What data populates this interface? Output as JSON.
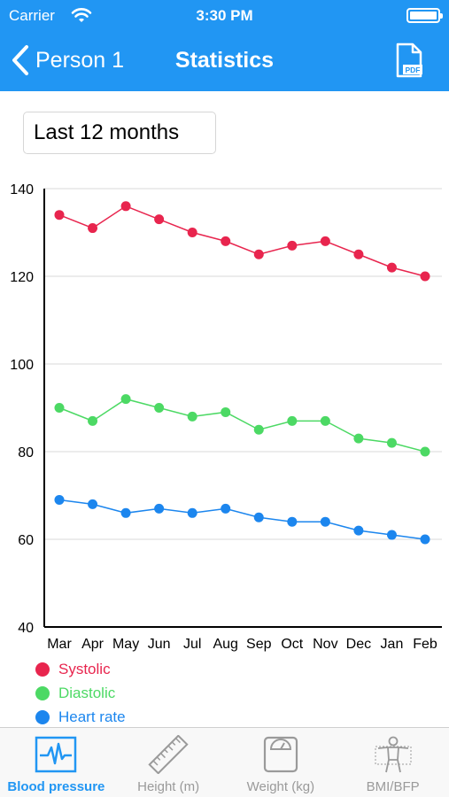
{
  "status_bar": {
    "carrier": "Carrier",
    "time": "3:30 PM"
  },
  "nav": {
    "back_label": "Person 1",
    "title": "Statistics",
    "pdf_icon": "pdf-file-icon"
  },
  "range": {
    "selected": "Last 12 months"
  },
  "colors": {
    "accent": "#2196f3",
    "systolic": "#e8254e",
    "diastolic": "#4cd964",
    "heart_rate": "#1c86ee"
  },
  "chart_data": {
    "type": "line",
    "categories": [
      "Mar",
      "Apr",
      "May",
      "Jun",
      "Jul",
      "Aug",
      "Sep",
      "Oct",
      "Nov",
      "Dec",
      "Jan",
      "Feb"
    ],
    "ylim": [
      40,
      140
    ],
    "yticks": [
      40,
      60,
      80,
      100,
      120,
      140
    ],
    "grid": true,
    "legend_placement": "bottom-left",
    "series": [
      {
        "name": "Systolic",
        "color": "#e8254e",
        "values": [
          134,
          131,
          136,
          133,
          130,
          128,
          125,
          127,
          128,
          125,
          122,
          120
        ]
      },
      {
        "name": "Diastolic",
        "color": "#4cd964",
        "values": [
          90,
          87,
          92,
          90,
          88,
          89,
          85,
          87,
          87,
          83,
          82,
          80
        ]
      },
      {
        "name": "Heart rate",
        "color": "#1c86ee",
        "values": [
          69,
          68,
          66,
          67,
          66,
          67,
          65,
          64,
          64,
          62,
          61,
          60
        ]
      }
    ]
  },
  "tabs": [
    {
      "label": "Blood pressure",
      "icon": "heartbeat-icon",
      "active": true
    },
    {
      "label": "Height (m)",
      "icon": "ruler-icon",
      "active": false
    },
    {
      "label": "Weight (kg)",
      "icon": "scale-icon",
      "active": false
    },
    {
      "label": "BMI/BFP",
      "icon": "body-icon",
      "active": false
    }
  ]
}
